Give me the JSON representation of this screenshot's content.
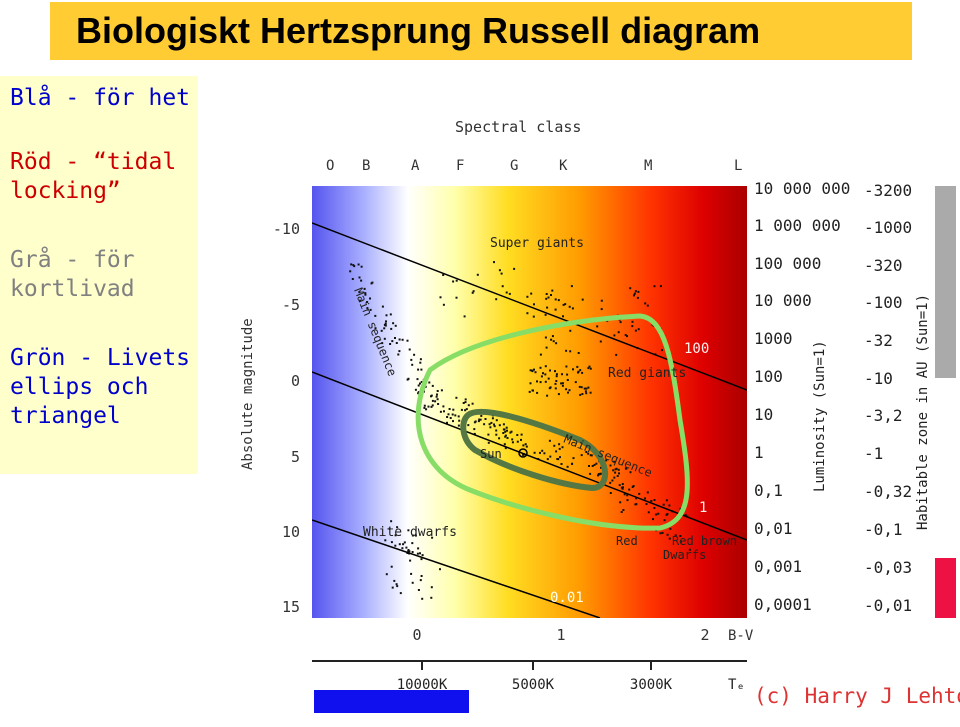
{
  "title": "Biologiskt Hertzsprung Russell diagram",
  "legend": {
    "blue": "Blå - för het",
    "red": "Röd - “tidal\nlocking”",
    "gray": "Grå - för\nkortlivad",
    "green": "Grön - Livets\nellips och\ntriangel"
  },
  "diagram": {
    "spectral_title": "Spectral class",
    "spectral_classes": [
      "O",
      "B",
      "A",
      "F",
      "G",
      "K",
      "M",
      "L"
    ],
    "magnitude_label": "Absolute magnitude",
    "magnitude_ticks": [
      "-10",
      "-5",
      "0",
      "5",
      "10",
      "15"
    ],
    "bv_ticks": [
      "0",
      "1",
      "2"
    ],
    "bv_label": "B-V",
    "temp_ticks": [
      "10000K",
      "5000K",
      "3000K"
    ],
    "temp_label": "Tₑ",
    "radius_labels": [
      "100",
      "1",
      "0.01"
    ],
    "region_labels": {
      "super_giants": "Super giants",
      "main_sequence_upper": "Main sequence",
      "red_giants": "Red giants",
      "sun": "Sun",
      "main_sequence_lower": "Main sequence",
      "white_dwarfs": "White dwarfs",
      "red_brown_dwarfs_1": "Red brown",
      "red_brown_dwarfs_2": "Dwarfs"
    },
    "luminosity_label": "Luminosity (Sun=1)",
    "luminosity_ticks": [
      "10 000 000",
      "1 000 000",
      "100 000",
      "10 000",
      "1000",
      "100",
      "10",
      "1",
      "0,1",
      "0,01",
      "0,001",
      "0,0001"
    ],
    "habitable_label": "Habitable zone in AU (Sun=1)",
    "habitable_ticks": [
      "-3200",
      "-1000",
      "-320",
      "-100",
      "-32",
      "-10",
      "-3,2",
      "-1",
      "-0,32",
      "-0,1",
      "-0,03",
      "-0,01"
    ],
    "copyright": "(c) Harry J Lehto",
    "colors": {
      "too_hot": "#1010ee",
      "tidal_locking": "#ee1144",
      "short_lived": "#aaaaaa",
      "life_ellipse_light": "#88dd66",
      "life_ellipse_dark": "#557744"
    }
  }
}
